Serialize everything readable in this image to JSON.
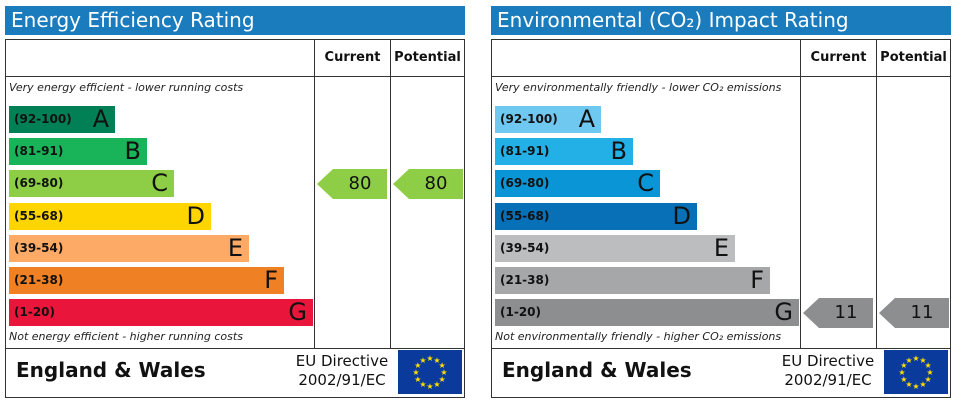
{
  "chart_data": [
    {
      "type": "bar",
      "title": "Energy Efficiency Rating",
      "columns": [
        "Current",
        "Potential"
      ],
      "top_note": "Very energy efficient - lower running costs",
      "bottom_note": "Not energy efficient - higher running costs",
      "bands": [
        {
          "range": "(92-100)",
          "letter": "A",
          "color": "#008054"
        },
        {
          "range": "(81-91)",
          "letter": "B",
          "color": "#19b459"
        },
        {
          "range": "(69-80)",
          "letter": "C",
          "color": "#8dce46"
        },
        {
          "range": "(55-68)",
          "letter": "D",
          "color": "#ffd500"
        },
        {
          "range": "(39-54)",
          "letter": "E",
          "color": "#fcaa65"
        },
        {
          "range": "(21-38)",
          "letter": "F",
          "color": "#ef8023"
        },
        {
          "range": "(1-20)",
          "letter": "G",
          "color": "#e9153b"
        }
      ],
      "current": {
        "value": 80,
        "band": "C",
        "color": "#8dce46"
      },
      "potential": {
        "value": 80,
        "band": "C",
        "color": "#8dce46"
      },
      "footer_country": "England & Wales",
      "footer_directive": [
        "EU Directive",
        "2002/91/EC"
      ]
    },
    {
      "type": "bar",
      "title": "Environmental (CO₂) Impact Rating",
      "columns": [
        "Current",
        "Potential"
      ],
      "top_note": "Very environmentally friendly - lower CO₂ emissions",
      "bottom_note": "Not environmentally friendly - higher CO₂ emissions",
      "bands": [
        {
          "range": "(92-100)",
          "letter": "A",
          "color": "#6fc8f0"
        },
        {
          "range": "(81-91)",
          "letter": "B",
          "color": "#22b0e6"
        },
        {
          "range": "(69-80)",
          "letter": "C",
          "color": "#0a96d6"
        },
        {
          "range": "(55-68)",
          "letter": "D",
          "color": "#0770b7"
        },
        {
          "range": "(39-54)",
          "letter": "E",
          "color": "#bcbdbf"
        },
        {
          "range": "(21-38)",
          "letter": "F",
          "color": "#a6a7a9"
        },
        {
          "range": "(1-20)",
          "letter": "G",
          "color": "#8d8e90"
        }
      ],
      "current": {
        "value": 11,
        "band": "G",
        "color": "#8d8e90"
      },
      "potential": {
        "value": 11,
        "band": "G",
        "color": "#8d8e90"
      },
      "footer_country": "England & Wales",
      "footer_directive": [
        "EU Directive",
        "2002/91/EC"
      ]
    }
  ],
  "colors": {
    "title_bar": "#1a7bbd",
    "eu_flag": "#0a3a9c",
    "eu_stars": "#ffdd00"
  }
}
